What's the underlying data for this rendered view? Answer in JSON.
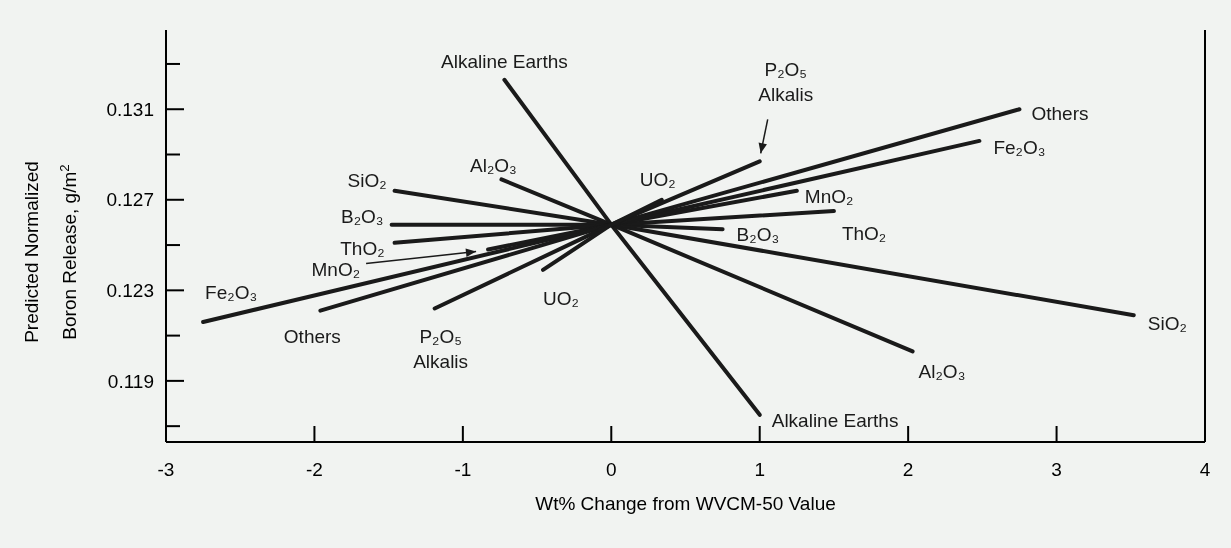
{
  "chart_data": {
    "type": "line",
    "xlabel": "Wt% Change from WVCM-50 Value",
    "ylabel": "Predicted Normalized\nBoron Release, g/m$^{2}$",
    "xlim": [
      -3,
      4
    ],
    "xticks": [
      -3,
      -2,
      -1,
      0,
      1,
      2,
      3,
      4
    ],
    "ylim": [
      0.1163,
      0.1345
    ],
    "yticks": [
      {
        "value": 0.117,
        "label": null
      },
      0.119,
      {
        "value": 0.121,
        "label": null
      },
      0.123,
      {
        "value": 0.125,
        "label": null
      },
      0.127,
      {
        "value": 0.129,
        "label": null
      },
      0.131,
      {
        "value": 0.133,
        "label": null
      }
    ],
    "series": [
      {
        "name": "Alkaline Earths",
        "color": "#1a1a1a",
        "x": [
          -0.72,
          0,
          1.0
        ],
        "values": [
          0.1323,
          0.1259,
          0.1175
        ]
      },
      {
        "name": "Al₂O₃",
        "color": "#1a1a1a",
        "x": [
          -0.74,
          0,
          2.03
        ],
        "values": [
          0.1279,
          0.1259,
          0.1203
        ]
      },
      {
        "name": "SiO₂",
        "color": "#1a1a1a",
        "x": [
          -1.46,
          0,
          3.52
        ],
        "values": [
          0.1274,
          0.1259,
          0.1219
        ]
      },
      {
        "name": "B₂O₃",
        "color": "#1a1a1a",
        "x": [
          -1.48,
          0,
          0.75
        ],
        "values": [
          0.1259,
          0.1259,
          0.1257
        ]
      },
      {
        "name": "ThO₂",
        "color": "#1a1a1a",
        "x": [
          -1.46,
          0,
          1.5
        ],
        "values": [
          0.1251,
          0.1259,
          0.1265
        ]
      },
      {
        "name": "MnO₂",
        "color": "#1a1a1a",
        "x": [
          -0.83,
          0,
          1.25
        ],
        "values": [
          0.1248,
          0.1259,
          0.1274
        ]
      },
      {
        "name": "Fe₂O₃",
        "color": "#1a1a1a",
        "x": [
          -2.75,
          0,
          2.48
        ],
        "values": [
          0.1216,
          0.1259,
          0.1296
        ]
      },
      {
        "name": "Others",
        "color": "#1a1a1a",
        "x": [
          -1.96,
          0,
          2.75
        ],
        "values": [
          0.1221,
          0.1259,
          0.131
        ]
      },
      {
        "name": "P₂O₅\nAlkalis",
        "color": "#1a1a1a",
        "x": [
          -1.19,
          0,
          1.0
        ],
        "values": [
          0.1222,
          0.1259,
          0.1287
        ]
      },
      {
        "name": "UO₂",
        "color": "#1a1a1a",
        "x": [
          -0.46,
          0,
          0.34
        ],
        "values": [
          0.1239,
          0.1259,
          0.127
        ]
      }
    ]
  }
}
